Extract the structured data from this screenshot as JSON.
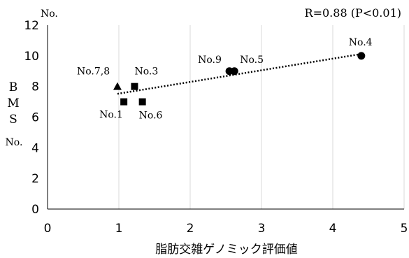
{
  "chart_data": {
    "type": "scatter",
    "title": "",
    "xlabel": "脂肪交雑ゲノミック評価値",
    "ylabel": [
      "B",
      "M",
      "S",
      "No."
    ],
    "y_unit": "No.",
    "annotation": "R=0.88 (P<0.01)",
    "xlim": [
      0,
      5
    ],
    "ylim": [
      0,
      12
    ],
    "x_ticks": [
      0,
      1,
      2,
      3,
      4,
      5
    ],
    "y_ticks": [
      0,
      2,
      4,
      6,
      8,
      10,
      12
    ],
    "grid": "vertical",
    "points": [
      {
        "label": "No.1",
        "x": 1.07,
        "y": 7,
        "marker": "square"
      },
      {
        "label": "No.3",
        "x": 1.22,
        "y": 8,
        "marker": "square"
      },
      {
        "label": "No.6",
        "x": 1.33,
        "y": 7,
        "marker": "square"
      },
      {
        "label": "No.7,8",
        "x": 0.98,
        "y": 8,
        "marker": "triangle"
      },
      {
        "label": "No.9",
        "x": 2.55,
        "y": 9,
        "marker": "circle"
      },
      {
        "label": "No.5",
        "x": 2.62,
        "y": 9,
        "marker": "circle"
      },
      {
        "label": "No.4",
        "x": 4.4,
        "y": 10,
        "marker": "circle"
      }
    ],
    "trendline": {
      "style": "dotted",
      "x": [
        0.98,
        4.4
      ],
      "y": [
        7.52,
        10.12
      ]
    }
  }
}
